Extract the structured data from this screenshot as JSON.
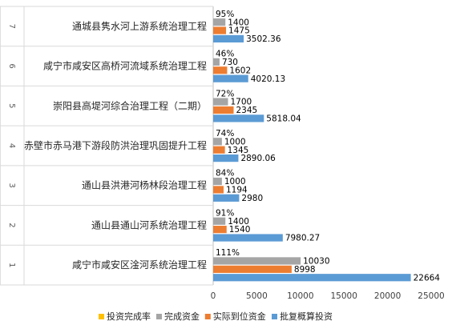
{
  "chart_data": {
    "type": "bar",
    "orientation": "horizontal",
    "categories": [
      {
        "num": "1",
        "name": "咸宁市咸安区淦河系统治理工程"
      },
      {
        "num": "2",
        "name": "通山县通山河系统治理工程"
      },
      {
        "num": "3",
        "name": "通山县洪港河杨林段治理工程"
      },
      {
        "num": "4",
        "name": "赤壁市赤马港下游段防洪治理巩固提升工程"
      },
      {
        "num": "5",
        "name": "崇阳县高堤河综合治理工程（二期）"
      },
      {
        "num": "6",
        "name": "咸宁市咸安区高桥河流域系统治理工程"
      },
      {
        "num": "7",
        "name": "通城县隽水河上游系统治理工程"
      }
    ],
    "series": [
      {
        "name": "投资完成率",
        "color": "#FFC000",
        "values": [
          1.11,
          0.91,
          0.84,
          0.74,
          0.72,
          0.46,
          0.95
        ],
        "labels": [
          "111%",
          "91%",
          "84%",
          "74%",
          "72%",
          "46%",
          "95%"
        ]
      },
      {
        "name": "完成资金",
        "color": "#A5A5A5",
        "values": [
          10030,
          1400,
          1000,
          1000,
          1700,
          730,
          1400
        ],
        "labels": [
          "10030",
          "1400",
          "1000",
          "1000",
          "1700",
          "730",
          "1400"
        ]
      },
      {
        "name": "实际到位资金",
        "color": "#ED7D31",
        "values": [
          8998,
          1540,
          1194,
          1345,
          2345,
          1602,
          1475
        ],
        "labels": [
          "8998",
          "1540",
          "1194",
          "1345",
          "2345",
          "1602",
          "1475"
        ]
      },
      {
        "name": "批复概算投资",
        "color": "#5B9BD5",
        "values": [
          22664,
          7980.27,
          2980,
          2890.06,
          5818.04,
          4020.13,
          3502.36
        ],
        "labels": [
          "22664",
          "7980.27",
          "2980",
          "2890.06",
          "5818.04",
          "4020.13",
          "3502.36"
        ]
      }
    ],
    "xlim": [
      0,
      25000
    ],
    "xticks": [
      "0",
      "5000",
      "10000",
      "15000",
      "20000",
      "25000"
    ],
    "grid": false,
    "legend": "bottom"
  }
}
